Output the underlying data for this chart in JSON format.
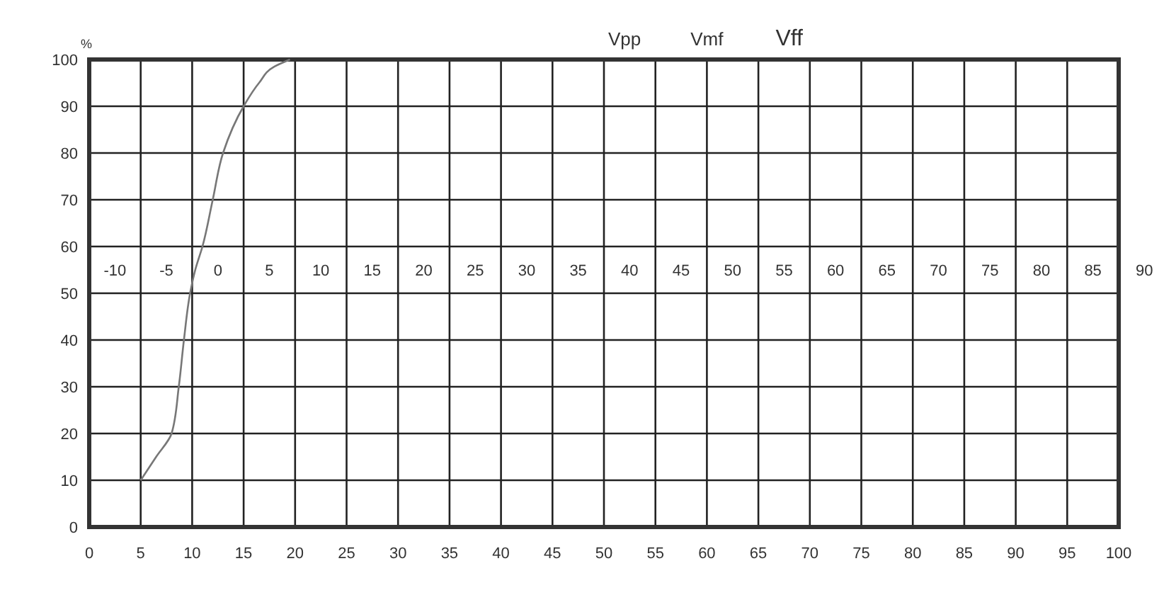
{
  "chart_data": {
    "type": "line",
    "ylabel": "%",
    "x": [
      5,
      6.5,
      8,
      8.7,
      9.2,
      9.8,
      10.3,
      11,
      12,
      13,
      15,
      16.5,
      18,
      19.5
    ],
    "series": [
      {
        "color": "#777777",
        "values": [
          10,
          15,
          20,
          30,
          40,
          50,
          55,
          60,
          70,
          80,
          90,
          95,
          98.5,
          100
        ]
      }
    ],
    "xlim": [
      0,
      100
    ],
    "xticks": [
      0,
      5,
      10,
      15,
      20,
      25,
      30,
      35,
      40,
      45,
      50,
      55,
      60,
      65,
      70,
      75,
      80,
      85,
      90,
      95,
      100
    ],
    "ylim": [
      0,
      100
    ],
    "yticks": [
      0,
      10,
      20,
      30,
      40,
      50,
      60,
      70,
      80,
      90,
      100
    ],
    "x2lim": [
      -10,
      90
    ],
    "x2ticks": [
      -10,
      -5,
      0,
      5,
      10,
      15,
      20,
      25,
      30,
      35,
      40,
      45,
      50,
      55,
      60,
      65,
      70,
      75,
      80,
      85,
      90
    ],
    "annotations": [
      "Vpp",
      "Vmf",
      "Vff"
    ],
    "grid": true,
    "marker": "none",
    "line_style": "solid"
  }
}
